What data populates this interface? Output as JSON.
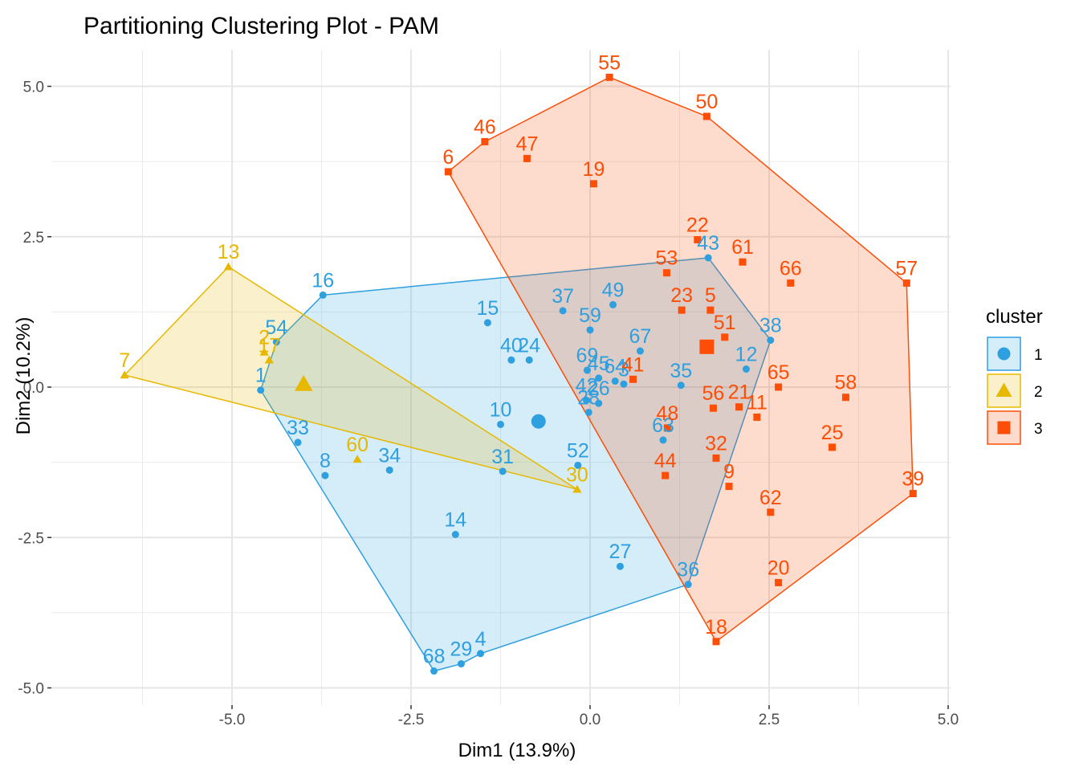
{
  "chart_data": {
    "type": "scatter",
    "title": "Partitioning Clustering Plot - PAM",
    "xlabel": "Dim1 (13.9%)",
    "ylabel": "Dim2 (10.2%)",
    "xlim": [
      -6.52,
      5.0
    ],
    "ylim": [
      -5.0,
      5.2
    ],
    "x_ticks": [
      -5.0,
      -2.5,
      0.0,
      2.5,
      5.0
    ],
    "x_tick_labels": [
      "-5.0",
      "-2.5",
      "0.0",
      "2.5",
      "5.0"
    ],
    "y_ticks": [
      -5.0,
      -2.5,
      0.0,
      2.5,
      5.0
    ],
    "y_tick_labels": [
      "-5.0",
      "-2.5",
      "0.0",
      "2.5",
      "5.0"
    ],
    "grid": true,
    "legend": {
      "title": "cluster",
      "position": "right",
      "entries": [
        {
          "label": "1",
          "color": "#2E9FDF"
        },
        {
          "label": "2",
          "color": "#E7B800"
        },
        {
          "label": "3",
          "color": "#FC4E07"
        }
      ]
    },
    "series": [
      {
        "name": "1",
        "color": "#2E9FDF",
        "marker": "circle",
        "points": [
          {
            "label": "1",
            "x": -4.6,
            "y": -0.05
          },
          {
            "label": "3",
            "x": 0.47,
            "y": 0.05
          },
          {
            "label": "4",
            "x": -1.53,
            "y": -4.43
          },
          {
            "label": "8",
            "x": -3.7,
            "y": -1.47
          },
          {
            "label": "10",
            "x": -1.25,
            "y": -0.62
          },
          {
            "label": "12",
            "x": 2.18,
            "y": 0.3
          },
          {
            "label": "14",
            "x": -1.88,
            "y": -2.45
          },
          {
            "label": "15",
            "x": -1.43,
            "y": 1.07
          },
          {
            "label": "16",
            "x": -3.73,
            "y": 1.53
          },
          {
            "label": "24",
            "x": -0.85,
            "y": 0.45
          },
          {
            "label": "26",
            "x": 0.12,
            "y": -0.27
          },
          {
            "label": "27",
            "x": 0.42,
            "y": -2.98
          },
          {
            "label": "28",
            "x": -0.02,
            "y": -0.42
          },
          {
            "label": "29",
            "x": -1.8,
            "y": -4.6
          },
          {
            "label": "31",
            "x": -1.22,
            "y": -1.4
          },
          {
            "label": "33",
            "x": -4.08,
            "y": -0.92
          },
          {
            "label": "34",
            "x": -2.8,
            "y": -1.38
          },
          {
            "label": "35",
            "x": 1.27,
            "y": 0.03
          },
          {
            "label": "36",
            "x": 1.37,
            "y": -3.28
          },
          {
            "label": "37",
            "x": -0.38,
            "y": 1.27
          },
          {
            "label": "38",
            "x": 2.52,
            "y": 0.78
          },
          {
            "label": "40",
            "x": -1.1,
            "y": 0.45
          },
          {
            "label": "42",
            "x": -0.05,
            "y": -0.22
          },
          {
            "label": "43",
            "x": 1.65,
            "y": 2.15
          },
          {
            "label": "45",
            "x": 0.12,
            "y": 0.15
          },
          {
            "label": "49",
            "x": 0.32,
            "y": 1.37
          },
          {
            "label": "52",
            "x": -0.17,
            "y": -1.3
          },
          {
            "label": "54",
            "x": -4.38,
            "y": 0.75
          },
          {
            "label": "59",
            "x": 0.0,
            "y": 0.95
          },
          {
            "label": "63",
            "x": 1.02,
            "y": -0.88
          },
          {
            "label": "64",
            "x": 0.35,
            "y": 0.1
          },
          {
            "label": "67",
            "x": 0.7,
            "y": 0.6
          },
          {
            "label": "68",
            "x": -2.18,
            "y": -4.72
          },
          {
            "label": "69",
            "x": -0.04,
            "y": 0.28
          }
        ],
        "hull_order": [
          "16",
          "43",
          "38",
          "36",
          "4",
          "29",
          "68",
          "1",
          "54"
        ],
        "medoid": {
          "x": -0.72,
          "y": -0.57
        }
      },
      {
        "name": "2",
        "color": "#E7B800",
        "marker": "triangle",
        "points": [
          {
            "label": "2",
            "x": -4.55,
            "y": 0.58
          },
          {
            "label": "7",
            "x": -6.5,
            "y": 0.2
          },
          {
            "label": "13",
            "x": -5.05,
            "y": 2.0
          },
          {
            "label": "17",
            "x": -4.48,
            "y": 0.45
          },
          {
            "label": "30",
            "x": -0.18,
            "y": -1.7
          },
          {
            "label": "60",
            "x": -3.25,
            "y": -1.2
          }
        ],
        "hull_order": [
          "13",
          "30",
          "7"
        ],
        "medoid": {
          "x": -4.0,
          "y": 0.05
        }
      },
      {
        "name": "3",
        "color": "#FC4E07",
        "marker": "square",
        "points": [
          {
            "label": "5",
            "x": 1.68,
            "y": 1.28
          },
          {
            "label": "6",
            "x": -1.98,
            "y": 3.58
          },
          {
            "label": "9",
            "x": 1.94,
            "y": -1.65
          },
          {
            "label": "11",
            "x": 2.33,
            "y": -0.5
          },
          {
            "label": "18",
            "x": 1.76,
            "y": -4.23
          },
          {
            "label": "19",
            "x": 0.05,
            "y": 3.38
          },
          {
            "label": "20",
            "x": 2.63,
            "y": -3.25
          },
          {
            "label": "21",
            "x": 2.08,
            "y": -0.33
          },
          {
            "label": "22",
            "x": 1.5,
            "y": 2.45
          },
          {
            "label": "23",
            "x": 1.28,
            "y": 1.28
          },
          {
            "label": "25",
            "x": 3.38,
            "y": -1.0
          },
          {
            "label": "32",
            "x": 1.76,
            "y": -1.18
          },
          {
            "label": "39",
            "x": 4.51,
            "y": -1.77
          },
          {
            "label": "41",
            "x": 0.6,
            "y": 0.13
          },
          {
            "label": "44",
            "x": 1.05,
            "y": -1.47
          },
          {
            "label": "46",
            "x": -1.47,
            "y": 4.08
          },
          {
            "label": "47",
            "x": -0.88,
            "y": 3.8
          },
          {
            "label": "48",
            "x": 1.08,
            "y": -0.68
          },
          {
            "label": "50",
            "x": 1.63,
            "y": 4.5
          },
          {
            "label": "51",
            "x": 1.88,
            "y": 0.83
          },
          {
            "label": "53",
            "x": 1.07,
            "y": 1.9
          },
          {
            "label": "55",
            "x": 0.27,
            "y": 5.15
          },
          {
            "label": "56",
            "x": 1.72,
            "y": -0.35
          },
          {
            "label": "57",
            "x": 4.42,
            "y": 1.73
          },
          {
            "label": "58",
            "x": 3.57,
            "y": -0.17
          },
          {
            "label": "61",
            "x": 2.13,
            "y": 2.08
          },
          {
            "label": "62",
            "x": 2.52,
            "y": -2.08
          },
          {
            "label": "65",
            "x": 2.63,
            "y": 0.0
          },
          {
            "label": "66",
            "x": 2.8,
            "y": 1.73
          }
        ],
        "hull_order": [
          "6",
          "46",
          "55",
          "50",
          "57",
          "39",
          "18"
        ],
        "medoid": {
          "x": 1.63,
          "y": 0.67
        }
      }
    ]
  }
}
